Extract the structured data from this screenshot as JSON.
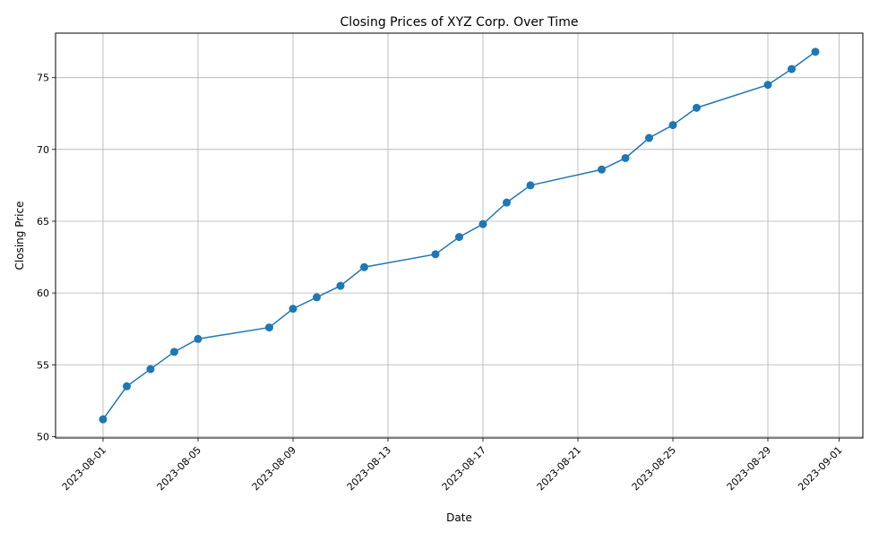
{
  "chart_data": {
    "type": "line",
    "title": "Closing Prices of XYZ Corp. Over Time",
    "xlabel": "Date",
    "ylabel": "Closing Price",
    "x_ticks": [
      "2023-08-01",
      "2023-08-05",
      "2023-08-09",
      "2023-08-13",
      "2023-08-17",
      "2023-08-21",
      "2023-08-25",
      "2023-08-29",
      "2023-09-01"
    ],
    "y_ticks": [
      50,
      55,
      60,
      65,
      70,
      75
    ],
    "xlim": [
      "2023-07-30",
      "2023-09-02"
    ],
    "ylim": [
      49.9,
      78.1
    ],
    "grid": true,
    "series": [
      {
        "color": "#1f77b4",
        "marker": "circle",
        "points": [
          {
            "x": "2023-08-01",
            "y": 51.2
          },
          {
            "x": "2023-08-02",
            "y": 53.5
          },
          {
            "x": "2023-08-03",
            "y": 54.7
          },
          {
            "x": "2023-08-04",
            "y": 55.9
          },
          {
            "x": "2023-08-05",
            "y": 56.8
          },
          {
            "x": "2023-08-08",
            "y": 57.6
          },
          {
            "x": "2023-08-09",
            "y": 58.9
          },
          {
            "x": "2023-08-10",
            "y": 59.7
          },
          {
            "x": "2023-08-11",
            "y": 60.5
          },
          {
            "x": "2023-08-12",
            "y": 61.8
          },
          {
            "x": "2023-08-15",
            "y": 62.7
          },
          {
            "x": "2023-08-16",
            "y": 63.9
          },
          {
            "x": "2023-08-17",
            "y": 64.8
          },
          {
            "x": "2023-08-18",
            "y": 66.3
          },
          {
            "x": "2023-08-19",
            "y": 67.5
          },
          {
            "x": "2023-08-22",
            "y": 68.6
          },
          {
            "x": "2023-08-23",
            "y": 69.4
          },
          {
            "x": "2023-08-24",
            "y": 70.8
          },
          {
            "x": "2023-08-25",
            "y": 71.7
          },
          {
            "x": "2023-08-26",
            "y": 72.9
          },
          {
            "x": "2023-08-29",
            "y": 74.5
          },
          {
            "x": "2023-08-30",
            "y": 75.6
          },
          {
            "x": "2023-08-31",
            "y": 76.8
          }
        ]
      }
    ]
  }
}
